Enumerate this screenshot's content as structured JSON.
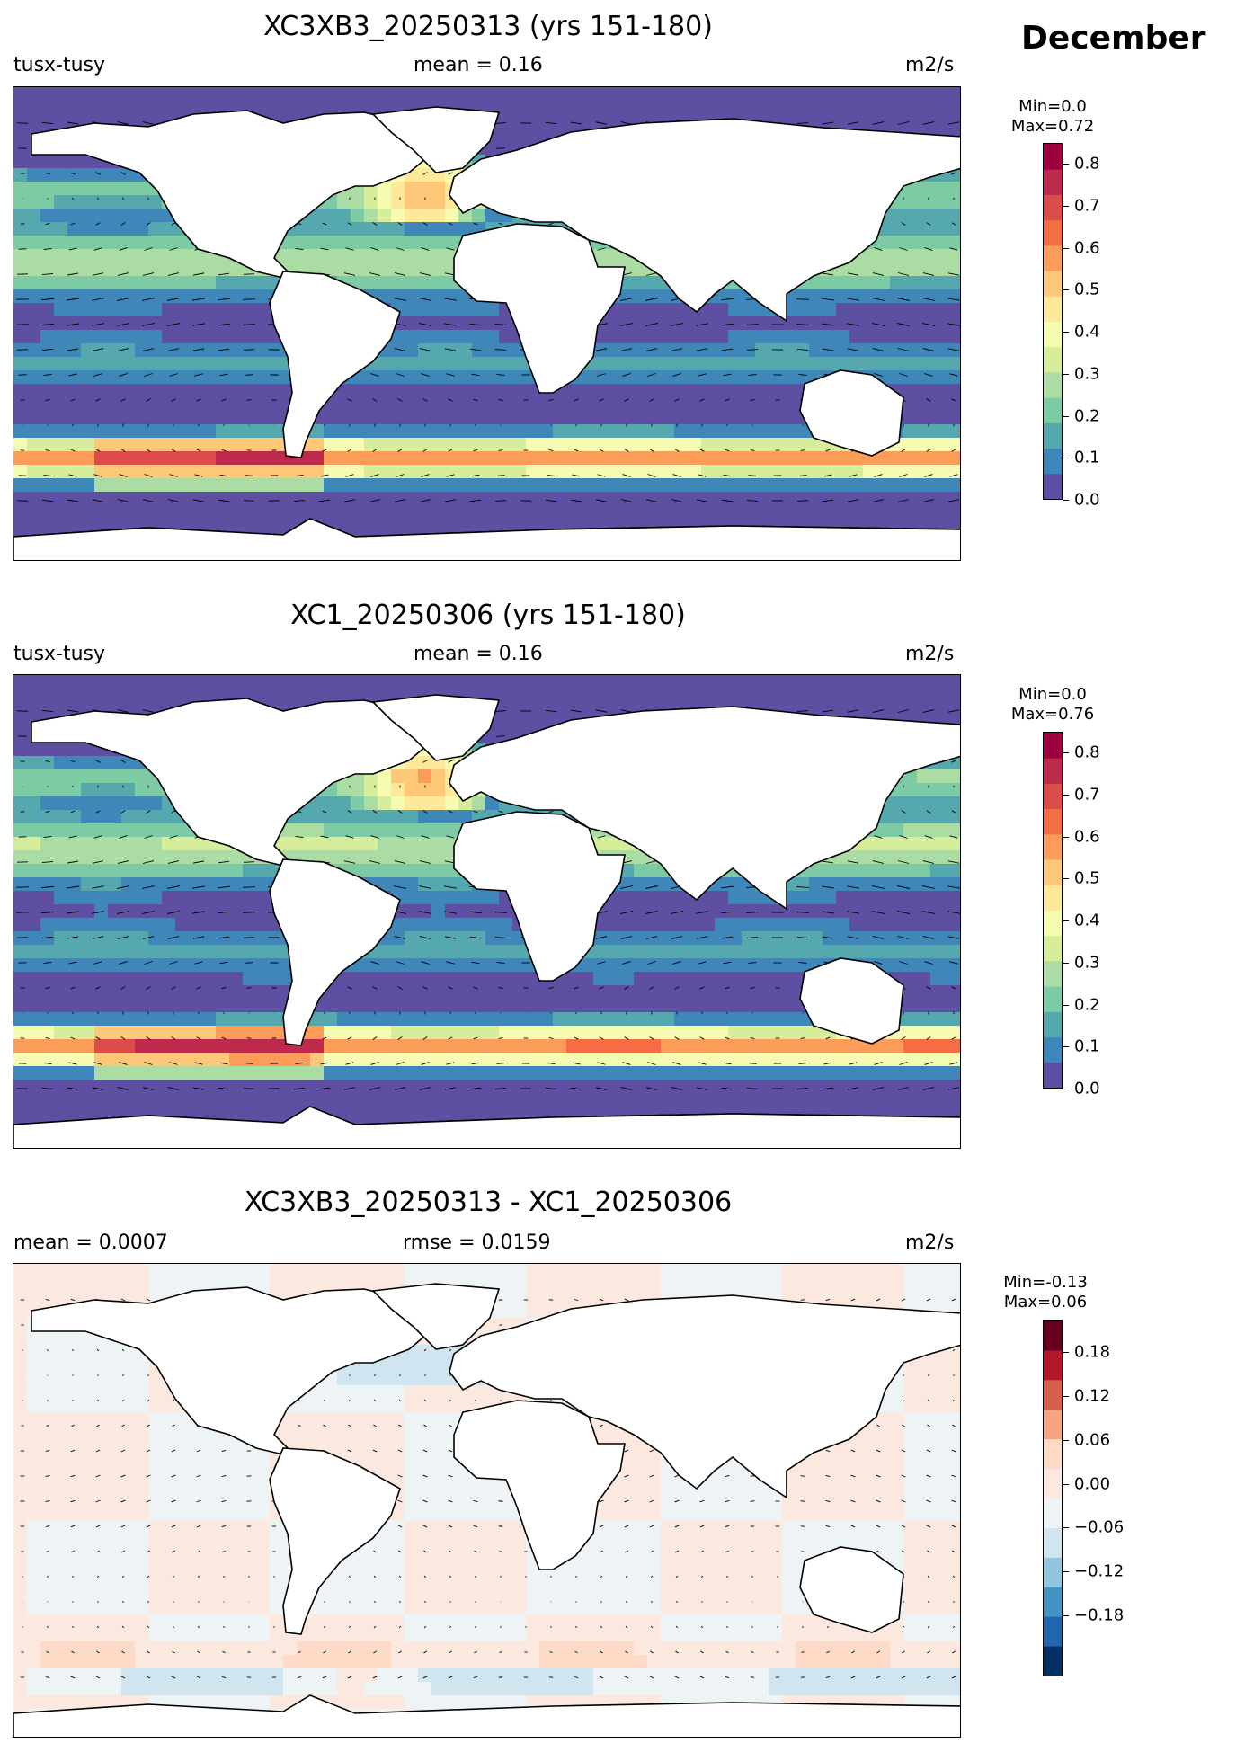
{
  "figure": {
    "month": "December",
    "panels": [
      {
        "title": "XC3XB3_20250313 (yrs 151-180)",
        "left_label": "tusx-tusy",
        "center_label": "mean = 0.16",
        "right_label": "m2/s",
        "minmax": [
          "Min=0.0",
          "Max=0.72"
        ],
        "colorbar_ticks": [
          "0.0",
          "0.1",
          "0.2",
          "0.3",
          "0.4",
          "0.5",
          "0.6",
          "0.7",
          "0.8"
        ],
        "colormap": "Spectral_r"
      },
      {
        "title": "XC1_20250306 (yrs 151-180)",
        "left_label": "tusx-tusy",
        "center_label": "mean = 0.16",
        "right_label": "m2/s",
        "minmax": [
          "Min=0.0",
          "Max=0.76"
        ],
        "colorbar_ticks": [
          "0.0",
          "0.1",
          "0.2",
          "0.3",
          "0.4",
          "0.5",
          "0.6",
          "0.7",
          "0.8"
        ],
        "colormap": "Spectral_r"
      },
      {
        "title": "XC3XB3_20250313 - XC1_20250306",
        "left_label": "mean = 0.0007",
        "center_label": "rmse = 0.0159",
        "right_label": "m2/s",
        "minmax": [
          "Min=-0.13",
          "Max=0.06"
        ],
        "colorbar_ticks": [
          "0.18",
          "0.12",
          "0.06",
          "0.00",
          "−0.06",
          "−0.12",
          "−0.18"
        ],
        "colormap": "RdBu_r"
      }
    ]
  },
  "colors": {
    "spectral": [
      "#5e4fa2",
      "#3f86b9",
      "#55a8ad",
      "#7ccba4",
      "#aadca3",
      "#d6ee9b",
      "#f5fbb1",
      "#fee99a",
      "#fdc878",
      "#fb9c59",
      "#f46d43",
      "#dc4c4b",
      "#be2a4b",
      "#9e0142"
    ],
    "rdbu": [
      "#053061",
      "#2166ac",
      "#4393c3",
      "#92c5de",
      "#d1e5f0",
      "#eef3f6",
      "#fbe8df",
      "#fddbc7",
      "#f4a582",
      "#d6604d",
      "#b2182b",
      "#67001f"
    ],
    "land": "#ffffff",
    "coast": "#000000"
  }
}
